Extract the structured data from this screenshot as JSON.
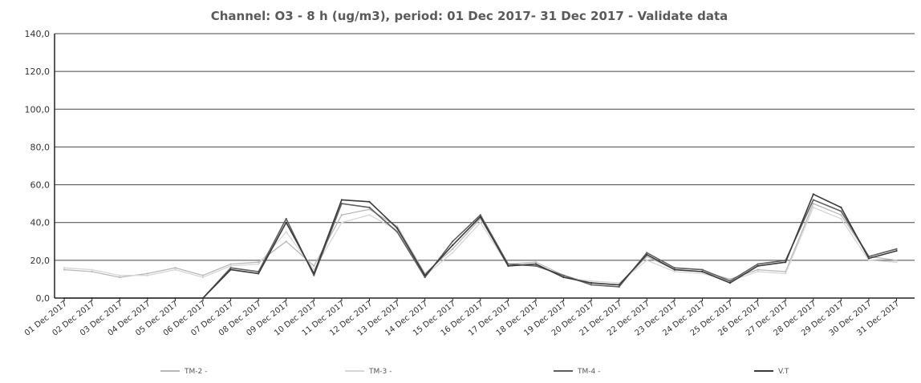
{
  "chart_data": {
    "type": "line",
    "title": "Channel: O3 - 8 h (ug/m3), period: 01 Dec 2017- 31 Dec 2017 - Validate data",
    "xlabel": "",
    "ylabel": "",
    "ylim": [
      0,
      140
    ],
    "yticks": [
      "0,0",
      "20,0",
      "40,0",
      "60,0",
      "80,0",
      "100,0",
      "120,0",
      "140,0"
    ],
    "categories": [
      "01 Dec 2017",
      "02 Dec 2017",
      "03 Dec 2017",
      "04 Dec 2017",
      "05 Dec 2017",
      "06 Dec 2017",
      "07 Dec 2017",
      "08 Dec 2017",
      "09 Dec 2017",
      "10 Dec 2017",
      "11 Dec 2017",
      "12 Dec 2017",
      "13 Dec 2017",
      "14 Dec 2017",
      "15 Dec 2017",
      "16 Dec 2017",
      "17 Dec 2017",
      "18 Dec 2017",
      "19 Dec 2017",
      "20 Dec 2017",
      "21 Dec 2017",
      "22 Dec 2017",
      "23 Dec 2017",
      "24 Dec 2017",
      "25 Dec 2017",
      "26 Dec 2017",
      "27 Dec 2017",
      "28 Dec 2017",
      "29 Dec 2017",
      "30 Dec 2017",
      "31 Dec 2017"
    ],
    "grid": true,
    "legend_position": "bottom",
    "series": [
      {
        "name": "TM-2 -",
        "color": "#b8b8b8",
        "values": [
          15,
          14,
          11,
          13,
          16,
          12,
          18,
          19,
          30,
          17,
          44,
          47,
          38,
          13,
          26,
          42,
          18,
          19,
          12,
          8,
          7,
          22,
          15,
          14,
          10,
          15,
          14,
          50,
          44,
          22,
          20
        ]
      },
      {
        "name": "TM-3 -",
        "color": "#d6d6d6",
        "values": [
          16,
          15,
          12,
          12,
          15,
          11,
          17,
          18,
          35,
          15,
          40,
          44,
          36,
          12,
          24,
          40,
          17,
          18,
          11,
          9,
          8,
          20,
          14,
          13,
          9,
          14,
          13,
          48,
          42,
          20,
          19
        ]
      },
      {
        "name": "TM-4 -",
        "color": "#5f5f5f",
        "values": [
          0,
          0,
          0,
          0,
          0,
          0,
          16,
          14,
          42,
          12,
          50,
          48,
          35,
          11,
          30,
          44,
          18,
          17,
          12,
          7,
          6,
          24,
          16,
          15,
          9,
          18,
          20,
          52,
          46,
          22,
          26
        ]
      },
      {
        "name": "V.T",
        "color": "#3a3a3a",
        "values": [
          0,
          0,
          0,
          0,
          0,
          0,
          15,
          13,
          40,
          13,
          52,
          51,
          37,
          12,
          28,
          43,
          17,
          18,
          11,
          8,
          7,
          23,
          15,
          14,
          8,
          17,
          19,
          55,
          48,
          21,
          25
        ]
      }
    ]
  }
}
